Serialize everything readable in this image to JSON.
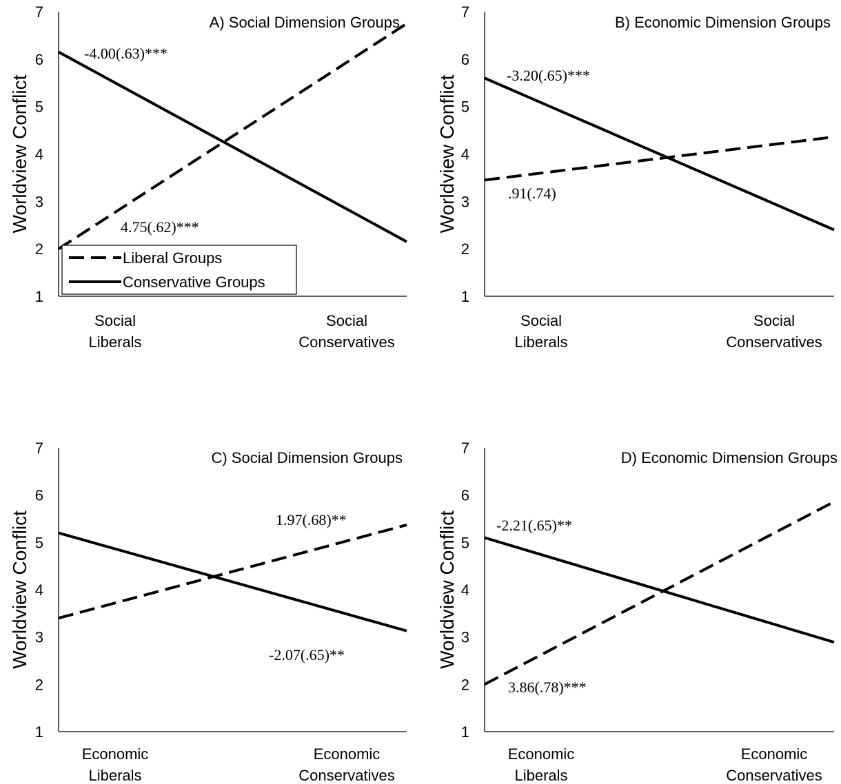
{
  "chart_data": [
    {
      "type": "line",
      "title": "A) Social Dimension Groups",
      "ylabel": "Worldview Conflict",
      "ylim": [
        1,
        7
      ],
      "yticks": [
        "1",
        "2",
        "3",
        "4",
        "5",
        "6",
        "7"
      ],
      "categories": [
        [
          "Social",
          "Liberals"
        ],
        [
          "Social",
          "Conservatives"
        ]
      ],
      "series": [
        {
          "name": "Liberal Groups",
          "style": "dashed",
          "values": [
            2.0,
            6.75
          ],
          "annotation": "4.75(.62)***"
        },
        {
          "name": "Conservative Groups",
          "style": "solid",
          "values": [
            6.15,
            2.15
          ],
          "annotation": "-4.00(.63)***"
        }
      ],
      "legend": {
        "placement": "bottom-left",
        "entries": [
          "Liberal Groups",
          "Conservative Groups"
        ]
      }
    },
    {
      "type": "line",
      "title": "B) Economic Dimension Groups",
      "ylabel": "Worldview Conflict",
      "ylim": [
        1,
        7
      ],
      "yticks": [
        "1",
        "2",
        "3",
        "4",
        "5",
        "6",
        "7"
      ],
      "categories": [
        [
          "Social",
          "Liberals"
        ],
        [
          "Social",
          "Conservatives"
        ]
      ],
      "series": [
        {
          "style": "dashed",
          "values": [
            3.45,
            4.36
          ],
          "annotation": ".91(.74)"
        },
        {
          "style": "solid",
          "values": [
            5.6,
            2.4
          ],
          "annotation": "-3.20(.65)***"
        }
      ]
    },
    {
      "type": "line",
      "title": "C) Social Dimension Groups",
      "ylabel": "Worldview Conflict",
      "ylim": [
        1,
        7
      ],
      "yticks": [
        "1",
        "2",
        "3",
        "4",
        "5",
        "6",
        "7"
      ],
      "categories": [
        [
          "Economic",
          "Liberals"
        ],
        [
          "Economic",
          "Conservatives"
        ]
      ],
      "series": [
        {
          "style": "dashed",
          "values": [
            3.4,
            5.37
          ],
          "annotation": "1.97(.68)**"
        },
        {
          "style": "solid",
          "values": [
            5.2,
            3.13
          ],
          "annotation": "-2.07(.65)**"
        }
      ]
    },
    {
      "type": "line",
      "title": "D) Economic Dimension Groups",
      "ylabel": "Worldview Conflict",
      "ylim": [
        1,
        7
      ],
      "yticks": [
        "1",
        "2",
        "3",
        "4",
        "5",
        "6",
        "7"
      ],
      "categories": [
        [
          "Economic",
          "Liberals"
        ],
        [
          "Economic",
          "Conservatives"
        ]
      ],
      "series": [
        {
          "style": "dashed",
          "values": [
            2.0,
            5.86
          ],
          "annotation": "3.86(.78)***"
        },
        {
          "style": "solid",
          "values": [
            5.1,
            2.89
          ],
          "annotation": "-2.21(.65)**"
        }
      ]
    }
  ]
}
